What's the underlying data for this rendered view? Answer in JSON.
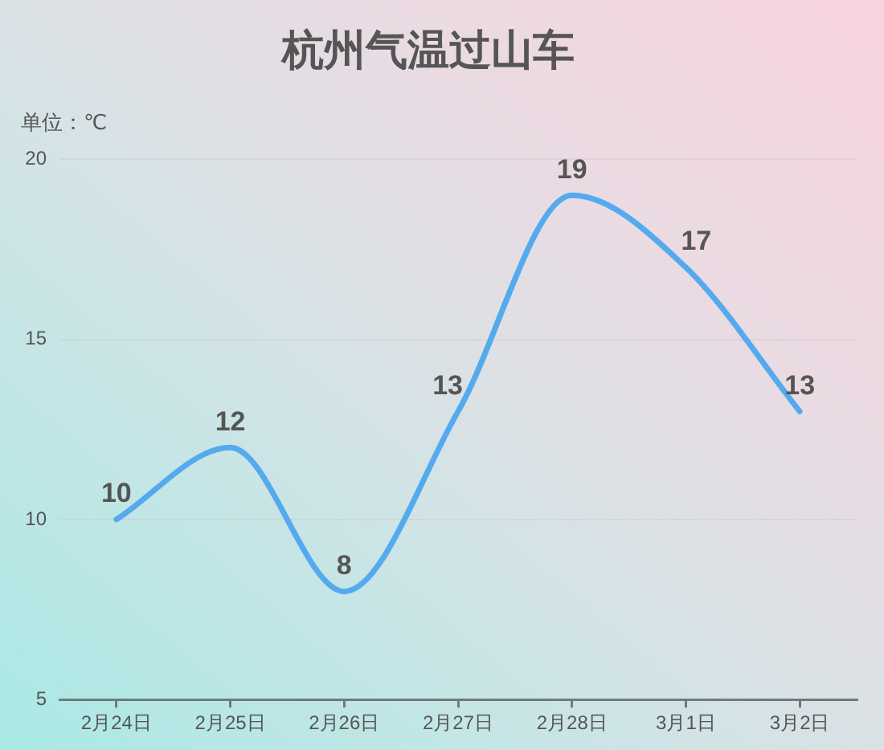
{
  "chart_data": {
    "type": "line",
    "title": "杭州气温过山车",
    "ylabel": "单位：℃",
    "categories": [
      "2月24日",
      "2月25日",
      "2月26日",
      "2月27日",
      "2月28日",
      "3月1日",
      "3月2日"
    ],
    "series": [
      {
        "color": "#55aaee",
        "values": [
          10,
          12,
          8,
          13,
          19,
          17,
          13
        ]
      }
    ],
    "ylim": [
      5,
      20
    ],
    "yticks": [
      5,
      10,
      15,
      20
    ],
    "grid": "y",
    "data_labels": true,
    "marker": "none",
    "legend": false
  }
}
